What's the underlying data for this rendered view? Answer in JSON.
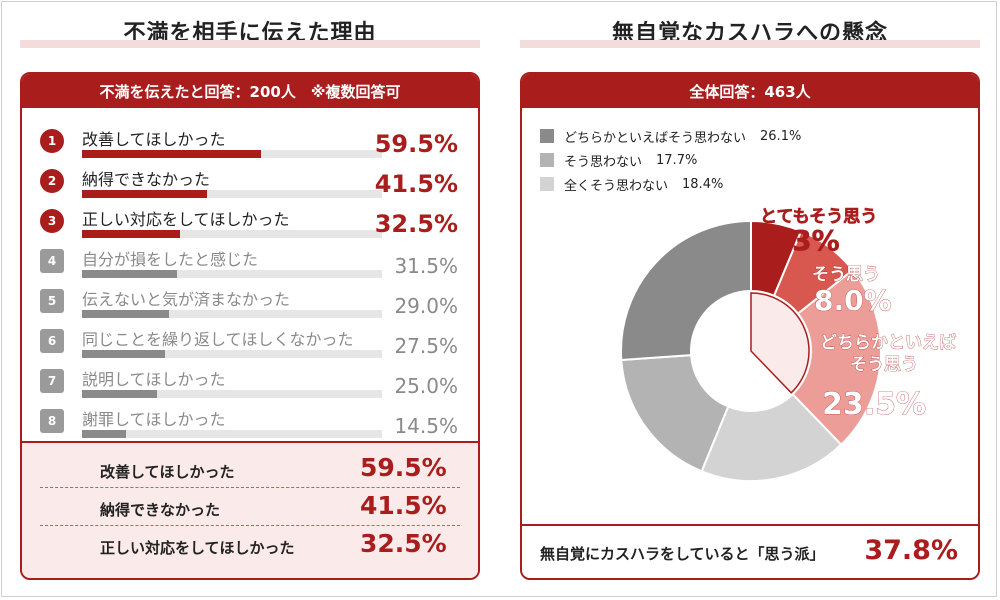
{
  "left": {
    "title": "不満を相手に伝えた理由",
    "header": "不満を伝えたと回答：200人　※複数回答可",
    "summary": [
      {
        "label": "改善してほしかった",
        "value": "59.5%"
      },
      {
        "label": "納得できなかった",
        "value": "41.5%"
      },
      {
        "label": "正しい対応をしてほしかった",
        "value": "32.5%"
      }
    ]
  },
  "right": {
    "title": "無自覚なカスハラへの懸念",
    "header": "全体回答：463人",
    "legend": [
      {
        "label": "どちらかといえばそう思わない",
        "value": "26.1%",
        "color": "#8a8a8a"
      },
      {
        "label": "そう思わない",
        "value": "17.7%",
        "color": "#b3b3b3"
      },
      {
        "label": "全くそう思わない",
        "value": "18.4%",
        "color": "#d3d3d3"
      }
    ],
    "bottom_label": "無自覚にカスハラをしていると「思う派」",
    "bottom_value": "37.8%"
  },
  "colors": {
    "accent": "#a91d1d",
    "muted": "#8a8a8a"
  },
  "chart_data": [
    {
      "type": "bar",
      "title": "不満を相手に伝えた理由",
      "categories": [
        "改善してほしかった",
        "納得できなかった",
        "正しい対応をしてほしかった",
        "自分が損をしたと感じた",
        "伝えないと気が済まなかった",
        "同じことを繰り返してほしくなかった",
        "説明してほしかった",
        "謝罪してほしかった"
      ],
      "ranks": [
        "1",
        "2",
        "3",
        "4",
        "5",
        "6",
        "7",
        "8"
      ],
      "values": [
        59.5,
        41.5,
        32.5,
        31.5,
        29.0,
        27.5,
        25.0,
        14.5
      ],
      "value_labels": [
        "59.5%",
        "41.5%",
        "32.5%",
        "31.5%",
        "29.0%",
        "27.5%",
        "25.0%",
        "14.5%"
      ],
      "highlight_top": 3,
      "ylim": [
        0,
        100
      ]
    },
    {
      "type": "pie",
      "title": "無自覚なカスハラへの懸念",
      "slices": [
        {
          "label": "とてもそう思う",
          "value": 6.3,
          "value_label": "6.3%",
          "color": "#a91d1d"
        },
        {
          "label": "そう思う",
          "value": 8.0,
          "value_label": "8.0%",
          "color": "#d8574f"
        },
        {
          "label": "どちらかといえばそう思う",
          "value": 23.5,
          "value_label": "23.5%",
          "color": "#ec9d97"
        },
        {
          "label": "全くそう思わない",
          "value": 18.4,
          "color": "#d3d3d3"
        },
        {
          "label": "そう思わない",
          "value": 17.7,
          "color": "#b3b3b3"
        },
        {
          "label": "どちらかといえばそう思わない",
          "value": 26.1,
          "color": "#8a8a8a"
        }
      ],
      "highlight_group": {
        "value": 37.8,
        "color": "#fbeaea"
      }
    }
  ]
}
